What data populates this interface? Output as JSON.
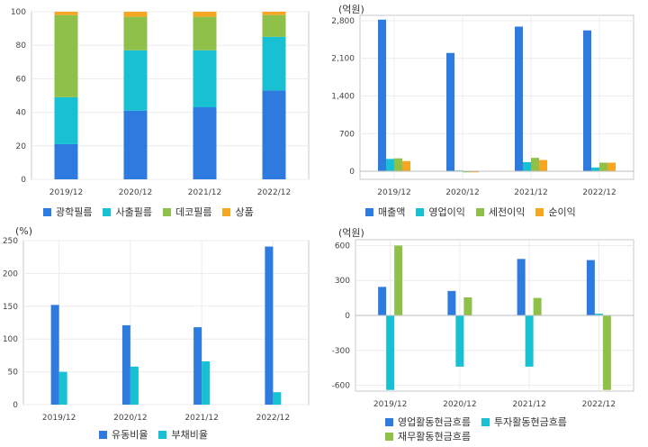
{
  "colors": {
    "blue": "#2e7be0",
    "cyan": "#17c1d3",
    "green": "#8fc04a",
    "orange": "#f5a623"
  },
  "chart_data": [
    {
      "type": "bar",
      "stacked": true,
      "unit": "",
      "categories": [
        "2019/12",
        "2020/12",
        "2021/12",
        "2022/12"
      ],
      "ylim": [
        0,
        100
      ],
      "yticks": [
        "0",
        "20",
        "40",
        "60",
        "80",
        "100"
      ],
      "grid": true,
      "legend": "bottom",
      "series": [
        {
          "name": "광학필름",
          "color": "#2e7be0",
          "values": [
            21,
            41,
            43,
            53
          ]
        },
        {
          "name": "사출필름",
          "color": "#17c1d3",
          "values": [
            28,
            36,
            34,
            32
          ]
        },
        {
          "name": "데코필름",
          "color": "#8fc04a",
          "values": [
            49,
            20,
            20,
            13
          ]
        },
        {
          "name": "상품",
          "color": "#f5a623",
          "values": [
            2,
            3,
            3,
            2
          ]
        }
      ]
    },
    {
      "type": "bar",
      "unit": "(억원)",
      "categories": [
        "2019/12",
        "2020/12",
        "2021/12",
        "2022/12"
      ],
      "ylim": [
        -150,
        2900
      ],
      "yticks": [
        "0",
        "700",
        "1,400",
        "2,100",
        "2,800"
      ],
      "grid": true,
      "legend": "bottom",
      "series": [
        {
          "name": "매출액",
          "color": "#2e7be0",
          "values": [
            2820,
            2200,
            2690,
            2620
          ]
        },
        {
          "name": "영업이익",
          "color": "#17c1d3",
          "values": [
            230,
            15,
            170,
            70
          ]
        },
        {
          "name": "세전이익",
          "color": "#8fc04a",
          "values": [
            240,
            -20,
            250,
            160
          ]
        },
        {
          "name": "순이익",
          "color": "#f5a623",
          "values": [
            190,
            -20,
            210,
            160
          ]
        }
      ]
    },
    {
      "type": "bar",
      "unit": "(%)",
      "categories": [
        "2019/12",
        "2020/12",
        "2021/12",
        "2022/12"
      ],
      "ylim": [
        0,
        250
      ],
      "yticks": [
        "0",
        "50",
        "100",
        "150",
        "200",
        "250"
      ],
      "grid": true,
      "legend": "bottom",
      "series": [
        {
          "name": "유동비율",
          "color": "#2e7be0",
          "values": [
            152,
            121,
            118,
            241
          ]
        },
        {
          "name": "부채비율",
          "color": "#17c1d3",
          "values": [
            50,
            58,
            66,
            19
          ]
        }
      ]
    },
    {
      "type": "bar",
      "unit": "(억원)",
      "categories": [
        "2019/12",
        "2020/12",
        "2021/12",
        "2022/12"
      ],
      "ylim": [
        -650,
        650
      ],
      "yticks": [
        "-600",
        "-300",
        "0",
        "300",
        "600"
      ],
      "grid": true,
      "legend": "bottom",
      "series": [
        {
          "name": "영업활동현금흐름",
          "color": "#2e7be0",
          "values": [
            245,
            210,
            485,
            475
          ]
        },
        {
          "name": "투자활동현금흐름",
          "color": "#17c1d3",
          "values": [
            -640,
            -440,
            -440,
            15
          ]
        },
        {
          "name": "재무활동현금흐름",
          "color": "#8fc04a",
          "values": [
            600,
            155,
            150,
            -640
          ]
        }
      ]
    }
  ]
}
